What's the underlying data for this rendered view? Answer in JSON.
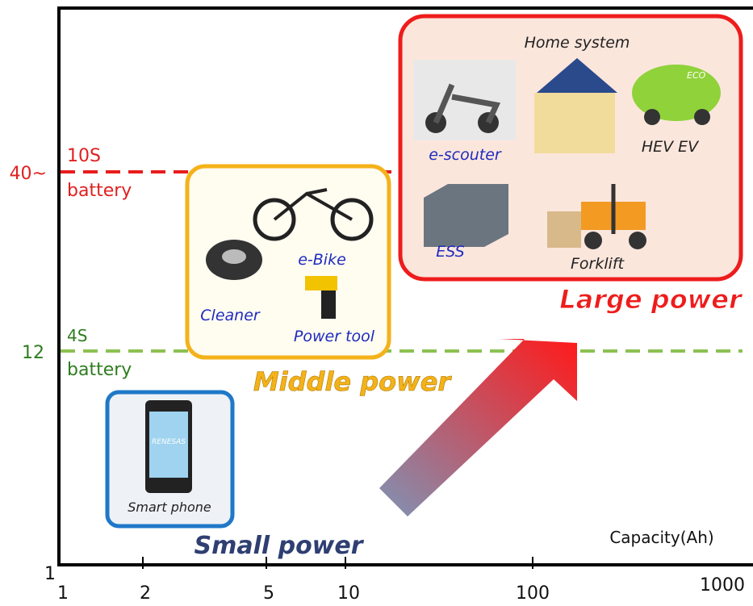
{
  "y_labels": [
    "40~",
    "12",
    "1"
  ],
  "x_labels": [
    "1",
    "2",
    "5",
    "10",
    "100",
    "1000"
  ],
  "x_axis_label": "Capacity(Ah)",
  "lines": [
    {
      "label_top": "10S",
      "label_bottom": "battery"
    },
    {
      "label_top": "4S",
      "label_bottom": "battery"
    }
  ],
  "groups": [
    {
      "title": "Large power",
      "items": [
        "Home system",
        "e-scouter",
        "HEV EV",
        "ESS",
        "Forklift"
      ]
    },
    {
      "title": "Middle power",
      "items": [
        "e-Bike",
        "Cleaner",
        "Power tool"
      ]
    },
    {
      "title": "Small power",
      "items": [
        "Smart phone"
      ]
    }
  ],
  "icon_texts": [
    "RENESAS",
    "ECO"
  ]
}
